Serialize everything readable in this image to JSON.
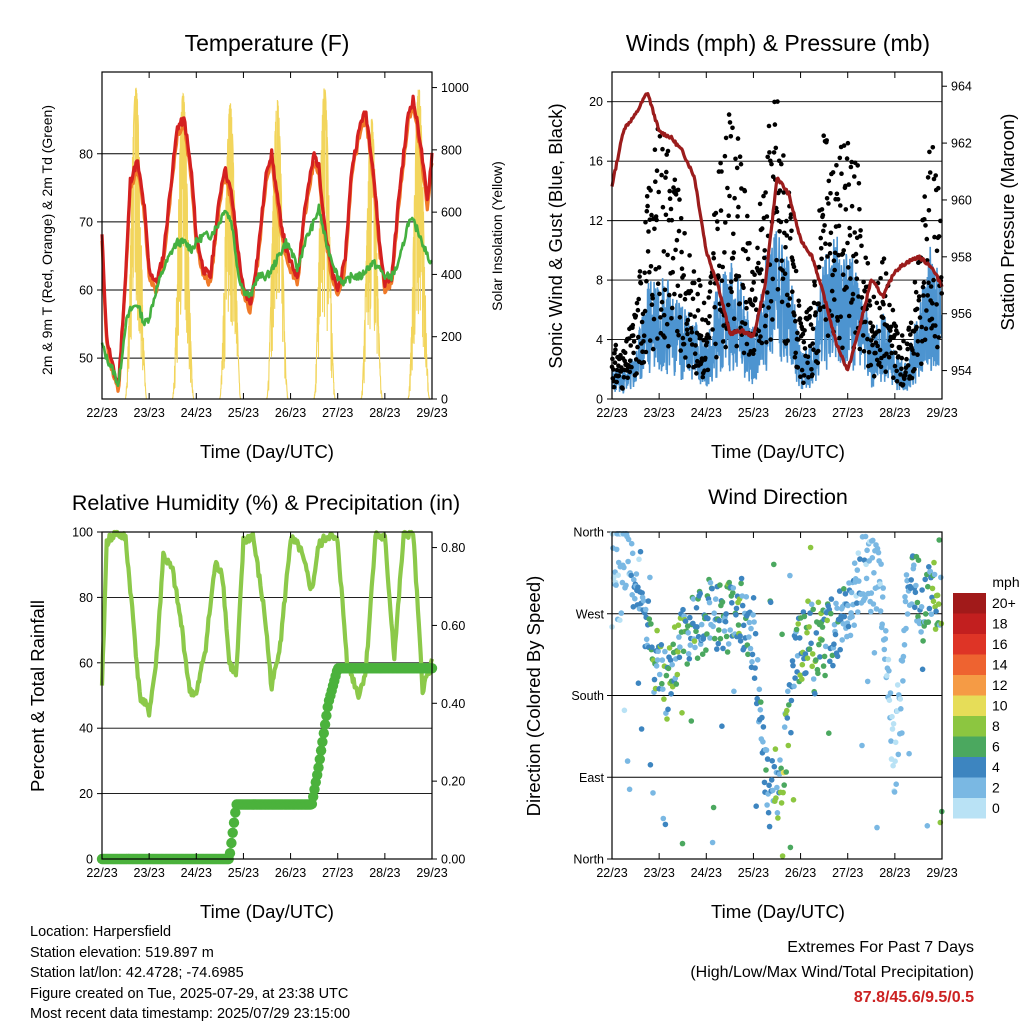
{
  "panels": {
    "temperature": {
      "title": "Temperature (F)",
      "ylabel_left": "2m & 9m T (Red, Orange) & 2m Td (Green)",
      "ylabel_right": "Solar Insolation (Yellow)",
      "xlabel": "Time (Day/UTC)"
    },
    "winds": {
      "title": "Winds (mph) & Pressure (mb)",
      "ylabel_left": "Sonic Wind & Gust (Blue, Black)",
      "ylabel_right": "Station Pressure (Maroon)",
      "xlabel": "Time (Day/UTC)"
    },
    "humidity": {
      "title": "Relative Humidity (%) & Precipitation (in)",
      "ylabel_left": "Percent & Total Rainfall",
      "xlabel": "Time (Day/UTC)"
    },
    "direction": {
      "title": "Wind Direction",
      "ylabel_left": "Direction (Colored By Speed)",
      "xlabel": "Time (Day/UTC)"
    }
  },
  "time_ticks": [
    "22/23",
    "23/23",
    "24/23",
    "25/23",
    "26/23",
    "27/23",
    "28/23",
    "29/23"
  ],
  "legend": {
    "title": "mph",
    "labels": [
      "20+",
      "18",
      "16",
      "14",
      "12",
      "10",
      "8",
      "6",
      "4",
      "2",
      "0"
    ],
    "colors": [
      "#a11a1a",
      "#c21f1f",
      "#de3426",
      "#ee6330",
      "#f59b45",
      "#e6dd58",
      "#8cc640",
      "#4ba85f",
      "#3d85c0",
      "#7ab8e3",
      "#b9e2f5"
    ]
  },
  "colors": {
    "temp_2m": "#d42020",
    "temp_9m": "#f07a28",
    "dewpoint": "#44b040",
    "solar": "#f2d55c",
    "wind": "#4d94d0",
    "gust": "#000000",
    "pressure": "#9b1c1c",
    "rh": "#8cc94a",
    "precip": "#4bb23c"
  },
  "chart_data": [
    {
      "type": "line",
      "title": "Temperature (F)",
      "xlabel": "Time (Day/UTC)",
      "ylabel": "2m & 9m T (Red, Orange) & 2m Td (Green)",
      "y2label": "Solar Insolation (Yellow)",
      "ylim": [
        44,
        92
      ],
      "y2lim": [
        0,
        1050
      ],
      "x": [
        0,
        0.1,
        0.25,
        0.35,
        0.5,
        0.6,
        0.75,
        0.9,
        1.0,
        1.15,
        1.3,
        1.5,
        1.6,
        1.75,
        1.9,
        2.0,
        2.15,
        2.3,
        2.5,
        2.6,
        2.75,
        2.9,
        3.0,
        3.15,
        3.3,
        3.5,
        3.6,
        3.75,
        3.9,
        4.0,
        4.15,
        4.3,
        4.5,
        4.6,
        4.75,
        4.9,
        5.0,
        5.15,
        5.3,
        5.5,
        5.6,
        5.75,
        5.9,
        6.0,
        6.15,
        6.3,
        6.5,
        6.6,
        6.75,
        6.9,
        7.0
      ],
      "series": [
        {
          "name": "2m T (Red)",
          "values": [
            68,
            53,
            48,
            46,
            62,
            76,
            79,
            72,
            63,
            61,
            65,
            78,
            84,
            85,
            77,
            68,
            63,
            62,
            74,
            78,
            74,
            65,
            60,
            58,
            65,
            78,
            80,
            72,
            66,
            64,
            62,
            72,
            80,
            78,
            68,
            62,
            60,
            64,
            78,
            85,
            86,
            78,
            66,
            61,
            62,
            74,
            86,
            88,
            82,
            73,
            80
          ]
        },
        {
          "name": "9m T (Orange)",
          "values": [
            67,
            52,
            47,
            45,
            61,
            75,
            78,
            71,
            62,
            60,
            64,
            77,
            83,
            84,
            76,
            67,
            62,
            61,
            73,
            77,
            73,
            64,
            59,
            57,
            64,
            77,
            79,
            71,
            65,
            63,
            61,
            71,
            79,
            77,
            67,
            61,
            59,
            63,
            77,
            84,
            85,
            77,
            65,
            60,
            61,
            73,
            85,
            87,
            81,
            72,
            79
          ]
        },
        {
          "name": "2m Td (Green)",
          "values": [
            52,
            50,
            48,
            46,
            55,
            57,
            58,
            55,
            56,
            60,
            63,
            66,
            67,
            67,
            66,
            67,
            68,
            68,
            70,
            72,
            70,
            62,
            60,
            59,
            62,
            62,
            63,
            65,
            67,
            66,
            63,
            67,
            70,
            72,
            67,
            64,
            62,
            61,
            62,
            62,
            63,
            64,
            63,
            62,
            62,
            64,
            70,
            70,
            68,
            65,
            64
          ]
        }
      ],
      "secondary_series": [
        {
          "name": "Solar Insolation (Yellow)",
          "daily_peaks_wm2": [
            1000,
            980,
            950,
            960,
            1000,
            900,
            1000,
            850
          ]
        }
      ]
    },
    {
      "type": "scatter",
      "title": "Winds (mph) & Pressure (mb)",
      "xlabel": "Time (Day/UTC)",
      "ylabel": "Sonic Wind & Gust (Blue, Black)",
      "y2label": "Station Pressure (Maroon)",
      "ylim": [
        0,
        22
      ],
      "y2lim": [
        953,
        964.5
      ],
      "x": [
        0,
        0.25,
        0.5,
        0.75,
        1.0,
        1.25,
        1.5,
        1.75,
        2.0,
        2.25,
        2.5,
        2.75,
        3.0,
        3.25,
        3.5,
        3.75,
        4.0,
        4.25,
        4.5,
        4.75,
        5.0,
        5.25,
        5.5,
        5.75,
        6.0,
        6.25,
        6.5,
        6.75,
        7.0
      ],
      "series": [
        {
          "name": "Sonic Wind (Blue)",
          "values": [
            1.5,
            1.2,
            2.0,
            5.0,
            6.0,
            5.0,
            4.0,
            3.5,
            2.5,
            5.0,
            6.0,
            5.0,
            3.0,
            6.0,
            8.0,
            6.0,
            2.0,
            2.5,
            6.0,
            7.0,
            6.5,
            5.5,
            2.5,
            4.0,
            2.0,
            1.5,
            4.0,
            6.5,
            5.0
          ]
        },
        {
          "name": "Gust (Black)",
          "values": [
            3,
            2.5,
            5,
            11,
            15,
            14,
            9,
            7,
            5,
            12,
            15,
            13,
            6,
            14,
            17,
            11,
            4,
            5,
            14,
            13,
            14,
            12,
            5,
            8,
            4,
            3,
            8,
            14,
            11
          ]
        },
        {
          "name": "Station Pressure (Maroon)",
          "values": [
            960.5,
            962.5,
            963.0,
            963.8,
            962.4,
            962.2,
            961.7,
            960.8,
            958.2,
            957.0,
            955.3,
            955.4,
            955.2,
            957.0,
            960.8,
            960.2,
            958.6,
            958.0,
            956.6,
            955.0,
            954.0,
            955.5,
            957.2,
            956.6,
            957.5,
            957.8,
            958.0,
            957.7,
            957.0
          ]
        }
      ]
    },
    {
      "type": "line",
      "title": "Relative Humidity (%) & Precipitation (in)",
      "xlabel": "Time (Day/UTC)",
      "ylabel": "Percent & Total Rainfall",
      "ylim": [
        0,
        100
      ],
      "y2lim": [
        0,
        0.84
      ],
      "x": [
        0,
        0.1,
        0.3,
        0.5,
        0.65,
        0.8,
        1.0,
        1.15,
        1.3,
        1.5,
        1.7,
        1.85,
        2.0,
        2.2,
        2.4,
        2.55,
        2.7,
        2.85,
        3.0,
        3.2,
        3.45,
        3.6,
        3.8,
        4.0,
        4.2,
        4.45,
        4.6,
        4.8,
        5.0,
        5.2,
        5.45,
        5.6,
        5.8,
        6.0,
        6.2,
        6.4,
        6.6,
        6.8,
        7.0
      ],
      "series": [
        {
          "name": "Relative Humidity",
          "values": [
            52,
            97,
            100,
            98,
            75,
            50,
            45,
            60,
            93,
            88,
            70,
            52,
            50,
            65,
            90,
            88,
            60,
            56,
            97,
            99,
            75,
            52,
            68,
            98,
            95,
            82,
            96,
            99,
            97,
            60,
            50,
            58,
            99,
            98,
            62,
            99,
            100,
            52,
            60
          ]
        },
        {
          "name": "Total Rainfall (in)",
          "axis": "right",
          "values": [
            0,
            0,
            0,
            0,
            0,
            0,
            0,
            0,
            0,
            0,
            0,
            0,
            0,
            0,
            0,
            0,
            0,
            0.14,
            0.14,
            0.14,
            0.14,
            0.14,
            0.14,
            0.14,
            0.14,
            0.14,
            0.24,
            0.4,
            0.49,
            0.49,
            0.49,
            0.49,
            0.49,
            0.49,
            0.49,
            0.49,
            0.49,
            0.49,
            0.49
          ]
        }
      ]
    },
    {
      "type": "scatter",
      "title": "Wind Direction",
      "xlabel": "Time (Day/UTC)",
      "ylabel": "Direction (Colored By Speed)",
      "y_categories": [
        "North",
        "East",
        "South",
        "West",
        "North"
      ],
      "ylim": [
        0,
        360
      ],
      "color_scale_mph": [
        0,
        20
      ],
      "x": [
        0,
        0.3,
        0.6,
        0.9,
        1.2,
        1.5,
        1.8,
        2.1,
        2.4,
        2.7,
        3.0,
        3.3,
        3.6,
        3.9,
        4.2,
        4.5,
        4.8,
        5.1,
        5.4,
        5.7,
        6.0,
        6.3,
        6.6,
        6.9
      ],
      "series": [
        {
          "name": "Direction (deg)",
          "values": [
            340,
            330,
            300,
            220,
            190,
            250,
            260,
            270,
            265,
            280,
            240,
            70,
            90,
            220,
            250,
            240,
            260,
            290,
            330,
            300,
            100,
            320,
            280,
            290
          ]
        },
        {
          "name": "Speed (mph)",
          "values": [
            1,
            2,
            3,
            5,
            6,
            6,
            5,
            4,
            5,
            6,
            3,
            4,
            7,
            5,
            6,
            5,
            4,
            3,
            2,
            2,
            1,
            3,
            5,
            6
          ]
        }
      ]
    }
  ],
  "footer": {
    "location": "Location: Harpersfield",
    "elevation": "Station elevation: 519.897 m",
    "latlon": "Station lat/lon: 42.4728; -74.6985",
    "created": "Figure created on Tue, 2025-07-29, at 23:38 UTC",
    "recent": "Most recent data timestamp: 2025/07/29 23:15:00"
  },
  "extremes": {
    "title": "Extremes For Past 7 Days",
    "subtitle": "(High/Low/Max Wind/Total Precipitation)",
    "values": "87.8/45.6/9.5/0.5"
  }
}
